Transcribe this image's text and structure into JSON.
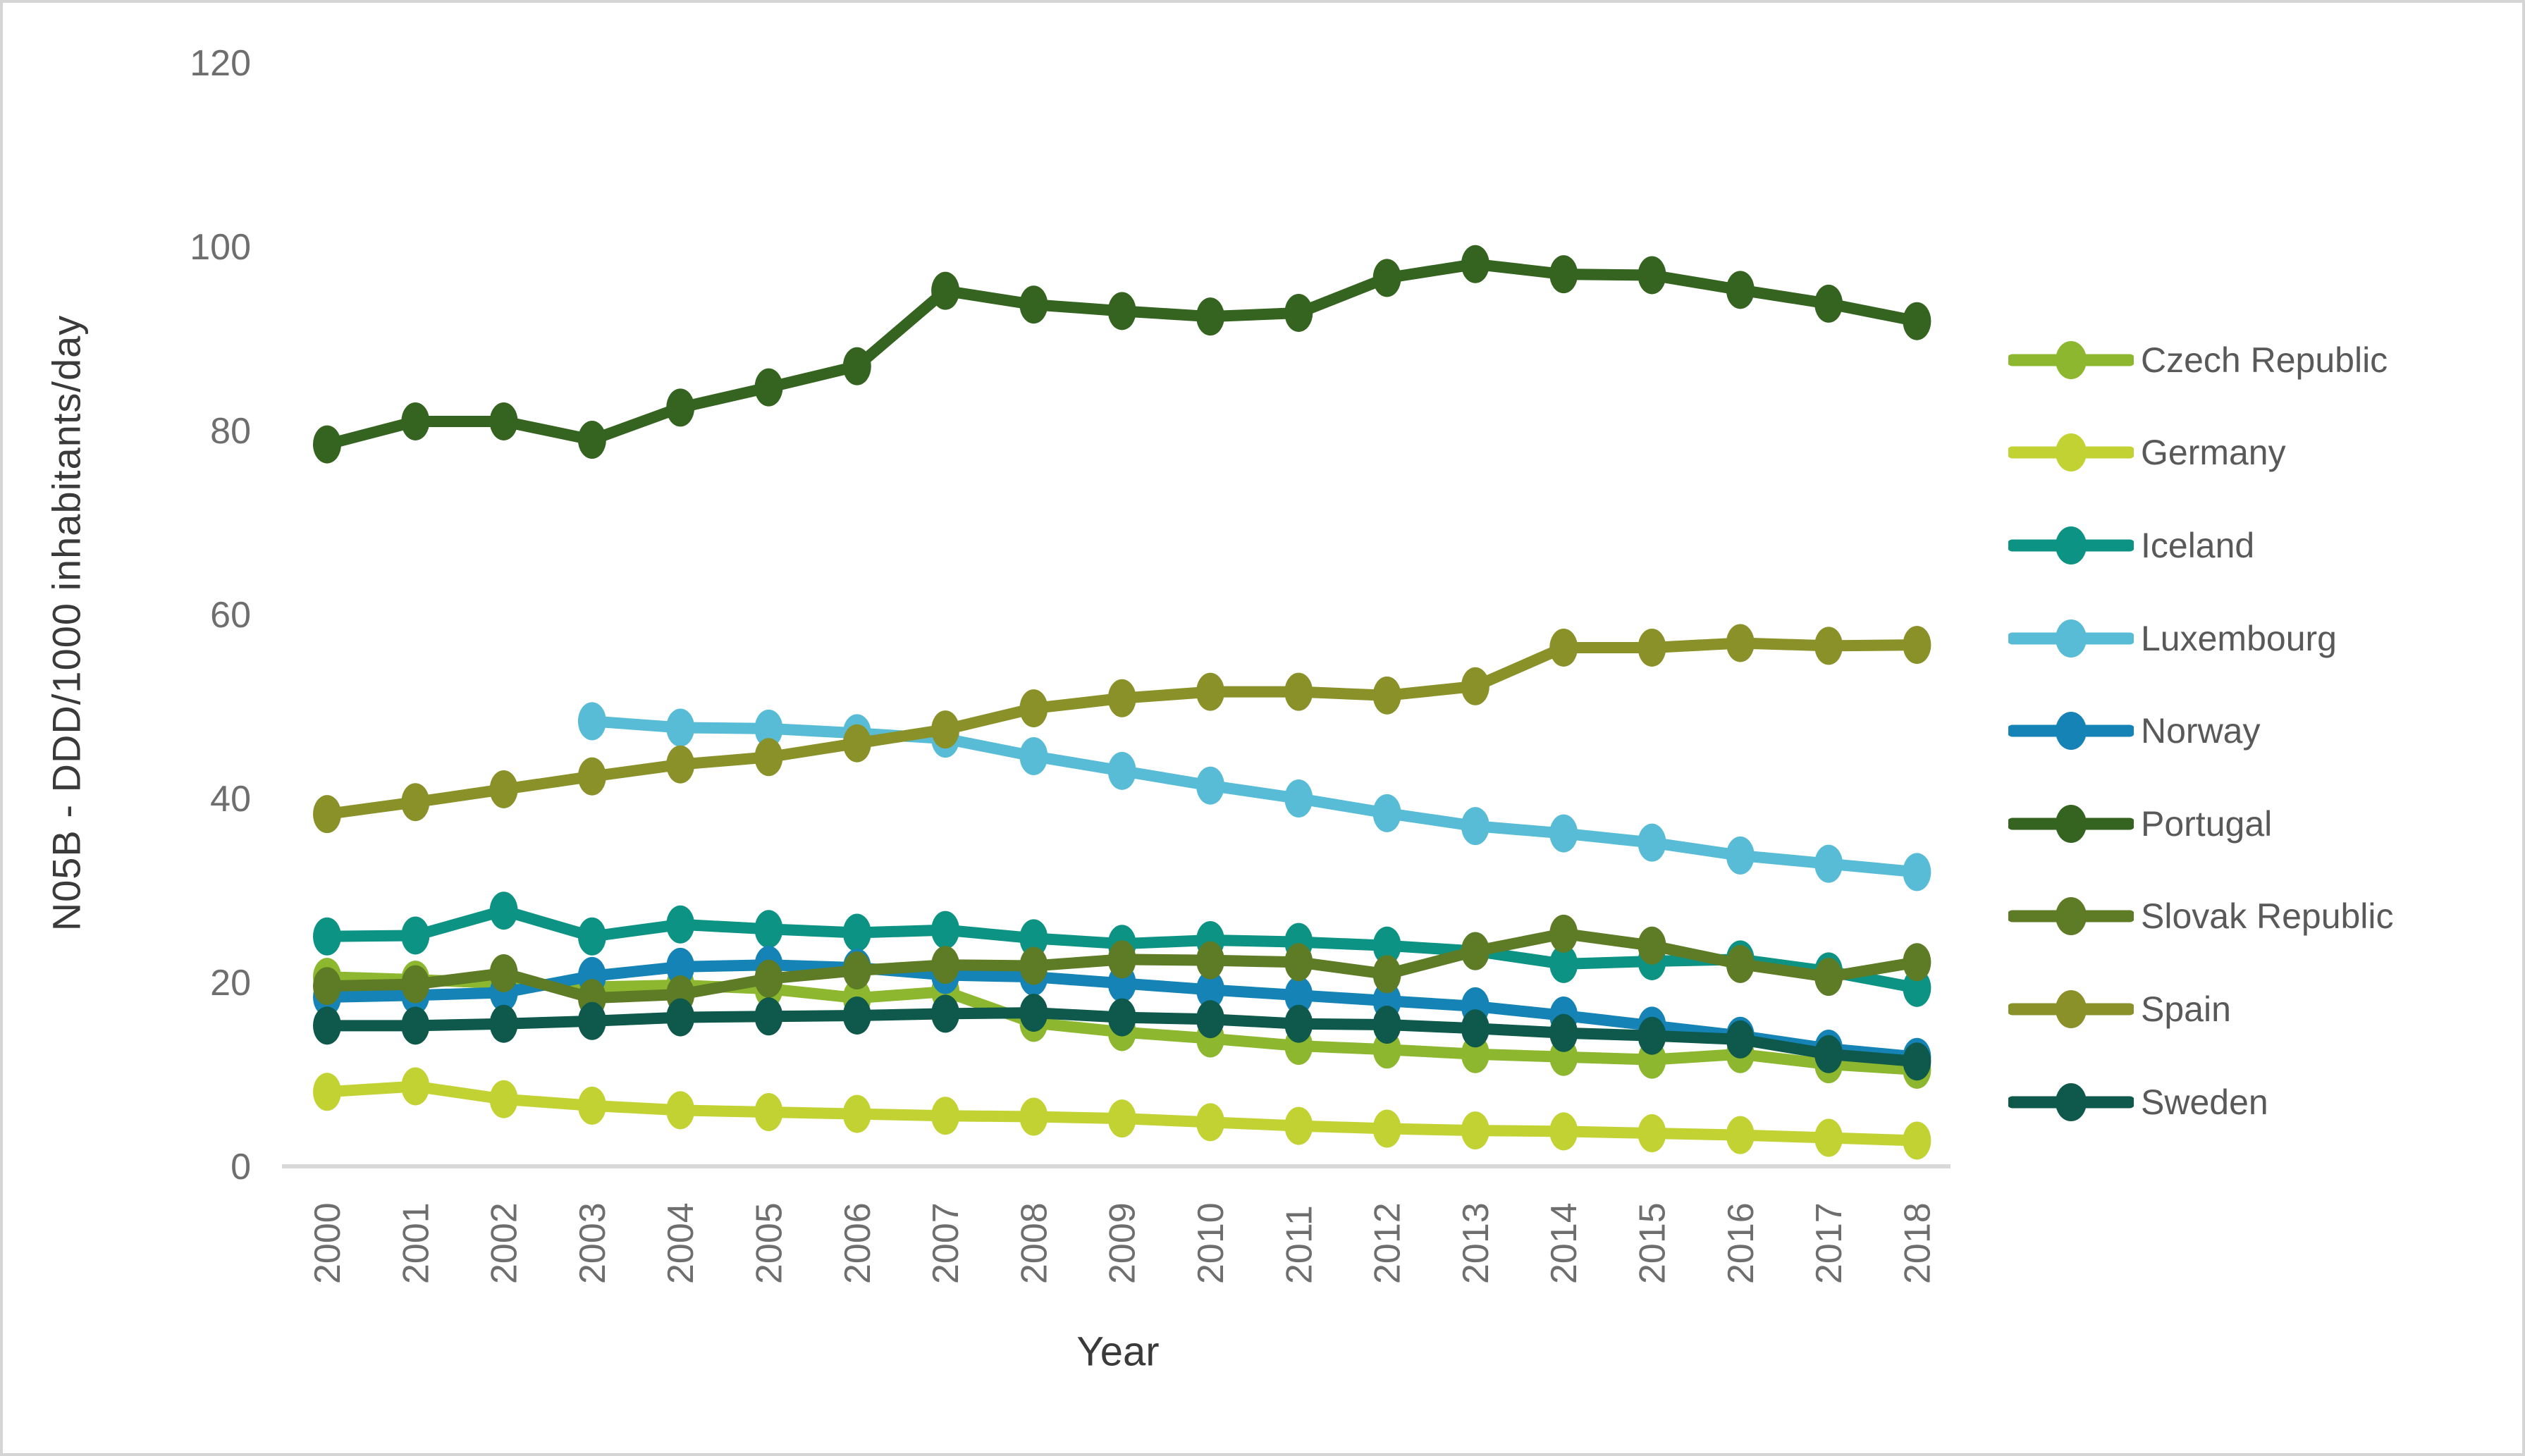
{
  "figure": {
    "background": "#ffffff",
    "border_color": "#d5d5d5"
  },
  "axis_style": {
    "axis_line_color": "#d9d9d9",
    "tick_label_color": "#6e6e6e",
    "axis_title_color": "#3a3a3a",
    "legend_text_color": "#595959"
  },
  "chart_data": {
    "type": "line",
    "title": "",
    "xlabel": "Year",
    "ylabel": "N05B - DDD/1000 inhabitants/day",
    "ylim": [
      0,
      120
    ],
    "yticks": [
      "0",
      "20",
      "40",
      "60",
      "80",
      "100",
      "120"
    ],
    "grid": false,
    "legend_position": "right",
    "marker": "ellipse-dot",
    "categories": [
      "2000",
      "2001",
      "2002",
      "2003",
      "2004",
      "2005",
      "2006",
      "2007",
      "2008",
      "2009",
      "2010",
      "2011",
      "2012",
      "2013",
      "2014",
      "2015",
      "2016",
      "2017",
      "2018"
    ],
    "series": [
      {
        "name": "Czech Republic",
        "color": "#8cb72f",
        "values": [
          20.6,
          20.3,
          19.9,
          19.5,
          19.7,
          19.3,
          18.3,
          19.0,
          15.6,
          14.6,
          13.9,
          13.1,
          12.7,
          12.2,
          11.9,
          11.6,
          12.2,
          11.1,
          10.5
        ]
      },
      {
        "name": "Germany",
        "color": "#c3d233",
        "values": [
          8.1,
          8.7,
          7.3,
          6.6,
          6.1,
          5.9,
          5.7,
          5.5,
          5.4,
          5.2,
          4.8,
          4.4,
          4.1,
          3.9,
          3.8,
          3.6,
          3.4,
          3.1,
          2.8
        ]
      },
      {
        "name": "Iceland",
        "color": "#0d9384",
        "values": [
          25.0,
          25.1,
          27.8,
          25.0,
          26.3,
          25.8,
          25.4,
          25.7,
          24.8,
          24.2,
          24.6,
          24.4,
          24.0,
          23.4,
          22.0,
          22.3,
          22.5,
          21.2,
          19.4
        ]
      },
      {
        "name": "Luxembourg",
        "color": "#58bcd6",
        "values": [
          null,
          null,
          null,
          48.4,
          47.7,
          47.6,
          47.1,
          46.5,
          44.6,
          43.0,
          41.4,
          40.0,
          38.4,
          37.0,
          36.2,
          35.2,
          33.8,
          32.9,
          32.0
        ]
      },
      {
        "name": "Norway",
        "color": "#1583b5",
        "values": [
          18.4,
          18.6,
          18.9,
          20.7,
          21.7,
          21.9,
          21.6,
          20.8,
          20.6,
          19.9,
          19.2,
          18.6,
          18.0,
          17.4,
          16.4,
          15.3,
          14.2,
          12.8,
          11.9
        ]
      },
      {
        "name": "Portugal",
        "color": "#356320",
        "values": [
          78.5,
          81.0,
          81.0,
          79.0,
          82.5,
          84.7,
          87.0,
          95.2,
          93.7,
          93.0,
          92.4,
          92.8,
          96.6,
          98.1,
          97.0,
          96.9,
          95.3,
          93.8,
          91.9
        ]
      },
      {
        "name": "Slovak Republic",
        "color": "#5e7b26",
        "values": [
          19.6,
          19.8,
          21.0,
          18.3,
          18.7,
          20.4,
          21.3,
          21.9,
          21.8,
          22.5,
          22.4,
          22.2,
          20.9,
          23.4,
          25.3,
          24.0,
          22.0,
          20.6,
          22.2
        ]
      },
      {
        "name": "Spain",
        "color": "#8a9128",
        "values": [
          38.3,
          39.6,
          41.0,
          42.4,
          43.7,
          44.5,
          46.0,
          47.5,
          49.8,
          50.9,
          51.6,
          51.6,
          51.2,
          52.2,
          56.4,
          56.4,
          56.9,
          56.6,
          56.7
        ]
      },
      {
        "name": "Sweden",
        "color": "#0e584c",
        "values": [
          15.3,
          15.3,
          15.5,
          15.8,
          16.2,
          16.3,
          16.4,
          16.6,
          16.7,
          16.2,
          16.0,
          15.5,
          15.4,
          15.0,
          14.5,
          14.2,
          13.8,
          12.2,
          11.4
        ]
      }
    ]
  }
}
